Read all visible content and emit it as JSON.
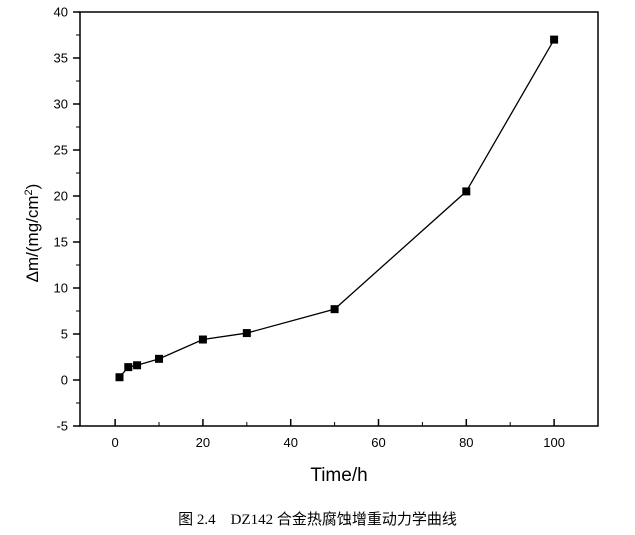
{
  "chart_data": {
    "type": "line",
    "markers": "square",
    "xlabel": "Time/h",
    "ylabel_main": "Δm/(mg/cm",
    "ylabel_sup": "2",
    "ylabel_end": ")",
    "xlim": [
      -8,
      110
    ],
    "ylim": [
      -5,
      40
    ],
    "xticks": [
      0,
      20,
      40,
      60,
      80,
      100
    ],
    "yticks": [
      -5,
      0,
      5,
      10,
      15,
      20,
      25,
      30,
      35,
      40
    ],
    "x_minor_step": 10,
    "y_minor_step": 2.5,
    "grid": false,
    "series": [
      {
        "x": [
          1,
          3,
          5,
          10,
          20,
          30,
          50,
          80,
          100
        ],
        "y": [
          0.3,
          1.4,
          1.6,
          2.3,
          4.4,
          5.1,
          7.7,
          20.5,
          37.0
        ],
        "color": "#000000"
      }
    ]
  },
  "caption": "图 2.4　DZ142 合金热腐蚀增重动力学曲线"
}
